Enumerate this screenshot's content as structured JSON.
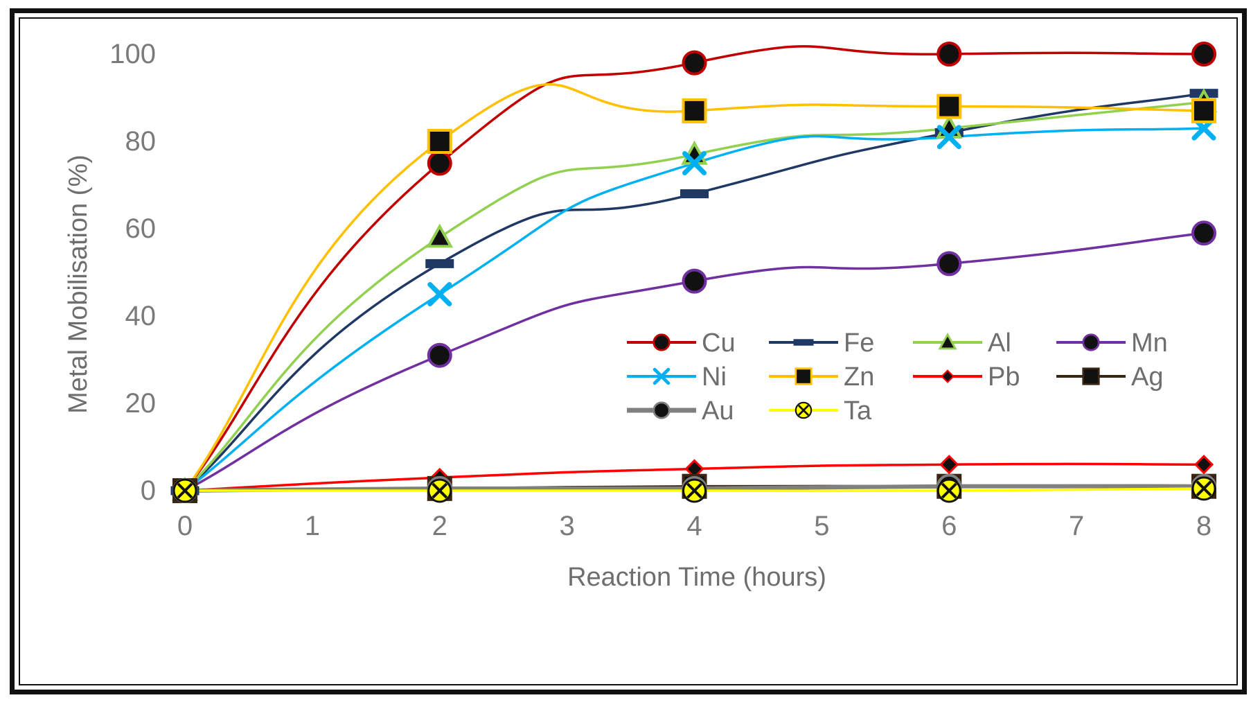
{
  "chart_data": {
    "type": "line",
    "title": "",
    "xlabel": "Reaction Time (hours)",
    "ylabel": "Metal Mobilisation (%)",
    "xlim": [
      0,
      8
    ],
    "ylim": [
      0,
      100
    ],
    "xticks": [
      0,
      1,
      2,
      3,
      4,
      5,
      6,
      7,
      8
    ],
    "yticks": [
      0,
      20,
      40,
      60,
      80,
      100
    ],
    "x": [
      0,
      2,
      4,
      6,
      8
    ],
    "legend_position": "center-right",
    "series": [
      {
        "name": "Cu",
        "values": [
          0,
          75,
          98,
          100,
          100
        ],
        "color": "#c00000",
        "marker": "circle"
      },
      {
        "name": "Fe",
        "values": [
          0,
          52,
          68,
          82,
          91
        ],
        "color": "#1f3864",
        "marker": "dash"
      },
      {
        "name": "Al",
        "values": [
          0,
          58,
          77,
          83,
          89
        ],
        "color": "#92d050",
        "marker": "triangle"
      },
      {
        "name": "Mn",
        "values": [
          0,
          31,
          48,
          52,
          59
        ],
        "color": "#7030a0",
        "marker": "circle"
      },
      {
        "name": "Ni",
        "values": [
          0,
          45,
          75,
          81,
          83
        ],
        "color": "#00b0f0",
        "marker": "x"
      },
      {
        "name": "Zn",
        "values": [
          0,
          80,
          87,
          88,
          87
        ],
        "color": "#ffc000",
        "marker": "square"
      },
      {
        "name": "Pb",
        "values": [
          0,
          3,
          5,
          6,
          6
        ],
        "color": "#ff0000",
        "marker": "diamond"
      },
      {
        "name": "Ag",
        "values": [
          0,
          0.5,
          1,
          1,
          1
        ],
        "color": "#3a2412",
        "marker": "square"
      },
      {
        "name": "Au",
        "values": [
          0,
          0.5,
          0.5,
          1,
          1
        ],
        "color": "#808080",
        "marker": "circle"
      },
      {
        "name": "Ta",
        "values": [
          0,
          0,
          0,
          0,
          0.5
        ],
        "color": "#ffff00",
        "marker": "xcircle"
      }
    ]
  }
}
